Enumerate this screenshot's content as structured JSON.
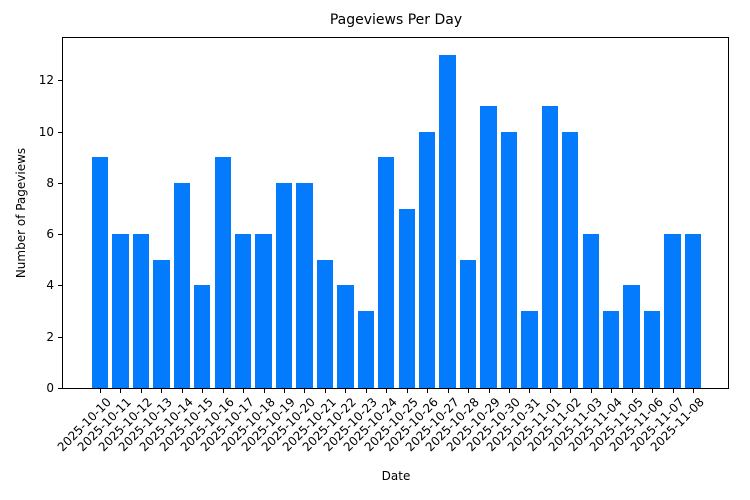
{
  "chart_data": {
    "type": "bar",
    "title": "Pageviews Per Day",
    "xlabel": "Date",
    "ylabel": "Number of Pageviews",
    "ylim": [
      0,
      13.65
    ],
    "yticks": [
      0,
      2,
      4,
      6,
      8,
      10,
      12
    ],
    "grid": false,
    "legend": null,
    "bar_color": "#047AFD",
    "categories": [
      "2025-10-10",
      "2025-10-11",
      "2025-10-12",
      "2025-10-13",
      "2025-10-14",
      "2025-10-15",
      "2025-10-16",
      "2025-10-17",
      "2025-10-18",
      "2025-10-19",
      "2025-10-20",
      "2025-10-21",
      "2025-10-22",
      "2025-10-23",
      "2025-10-24",
      "2025-10-25",
      "2025-10-26",
      "2025-10-27",
      "2025-10-28",
      "2025-10-29",
      "2025-10-30",
      "2025-10-31",
      "2025-11-01",
      "2025-11-02",
      "2025-11-03",
      "2025-11-04",
      "2025-11-05",
      "2025-11-06",
      "2025-11-07",
      "2025-11-08"
    ],
    "values": [
      9,
      6,
      6,
      5,
      8,
      4,
      9,
      6,
      6,
      8,
      8,
      5,
      4,
      3,
      9,
      7,
      10,
      13,
      5,
      11,
      10,
      3,
      11,
      10,
      6,
      3,
      4,
      3,
      6,
      6
    ]
  }
}
